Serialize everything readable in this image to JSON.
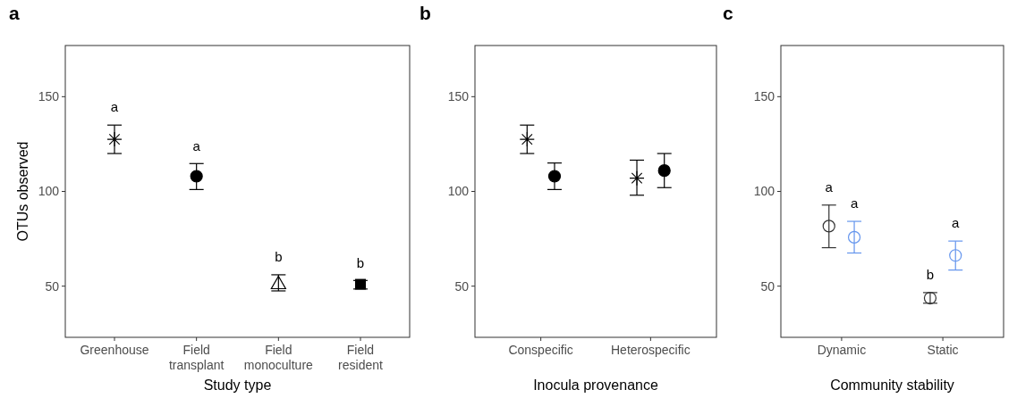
{
  "chart_data": [
    {
      "type": "scatter",
      "title": "a",
      "xlabel": "Study type",
      "ylabel": "OTUs observed",
      "categories": [
        "Greenhouse",
        "Field\ntransplant",
        "Field\nmonoculture",
        "Field\nresident"
      ],
      "ylim": [
        23,
        177
      ],
      "yticks": [
        50,
        100,
        150
      ],
      "grid": false,
      "series": [
        {
          "color": "#000000",
          "marker": "cross",
          "values": [
            127.5,
            null,
            null,
            null
          ],
          "errors": [
            [
              120,
              135
            ],
            null,
            null,
            null
          ]
        },
        {
          "color": "#000000",
          "marker": "circle",
          "values": [
            null,
            108,
            null,
            null
          ],
          "errors": [
            null,
            [
              101,
              114.7
            ],
            null,
            null
          ]
        },
        {
          "color": "#000000",
          "marker": "triangle",
          "values": [
            null,
            null,
            51.5,
            null
          ],
          "errors": [
            null,
            null,
            [
              47.5,
              56
            ],
            null
          ]
        },
        {
          "color": "#000000",
          "marker": "square",
          "values": [
            null,
            null,
            null,
            51
          ],
          "errors": [
            null,
            null,
            null,
            [
              48.5,
              53
            ]
          ]
        }
      ],
      "annotations": [
        "a",
        "a",
        "b",
        "b"
      ]
    },
    {
      "type": "scatter",
      "title": "b",
      "xlabel": "Inocula provenance",
      "categories": [
        "Conspecific",
        "Heterospecific"
      ],
      "ylim": [
        23,
        177
      ],
      "yticks": [
        50,
        100,
        150
      ],
      "grid": false,
      "series": [
        {
          "color": "#000000",
          "marker": "cross",
          "values": [
            127.5,
            107
          ],
          "errors": [
            [
              120,
              135
            ],
            [
              98,
              116.5
            ]
          ]
        },
        {
          "color": "#000000",
          "marker": "circle",
          "values": [
            108,
            111
          ],
          "errors": [
            [
              101,
              115
            ],
            [
              102,
              120
            ]
          ]
        }
      ]
    },
    {
      "type": "scatter",
      "title": "c",
      "xlabel": "Community stability",
      "categories": [
        "Dynamic",
        "Static"
      ],
      "ylim": [
        23,
        177
      ],
      "yticks": [
        50,
        100,
        150
      ],
      "grid": false,
      "series": [
        {
          "color": "#333333",
          "marker": "circle",
          "values": [
            81.7,
            43.7
          ],
          "errors": [
            [
              70.3,
              92.8
            ],
            [
              41,
              46.6
            ]
          ]
        },
        {
          "color": "#6495ed",
          "marker": "circle",
          "values": [
            75.8,
            66.2
          ],
          "errors": [
            [
              67.5,
              84.2
            ],
            [
              58.5,
              73.8
            ]
          ]
        }
      ],
      "annotations": [
        "a",
        "a",
        "b",
        "a"
      ]
    }
  ]
}
